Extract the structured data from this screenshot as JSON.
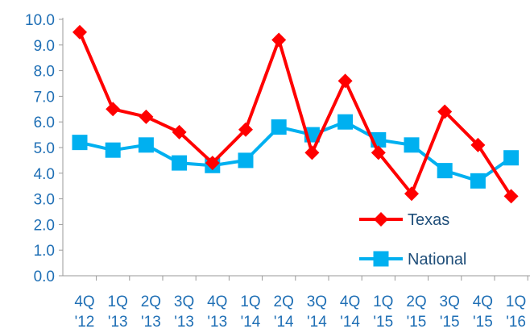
{
  "chart_data": {
    "type": "line",
    "title": "",
    "xlabel": "",
    "ylabel": "",
    "ylim": [
      0,
      10
    ],
    "y_ticks": [
      "0.0",
      "1.0",
      "2.0",
      "3.0",
      "4.0",
      "5.0",
      "6.0",
      "7.0",
      "8.0",
      "9.0",
      "10.0"
    ],
    "categories": [
      {
        "q": "4Q",
        "y": "'12"
      },
      {
        "q": "1Q",
        "y": "'13"
      },
      {
        "q": "2Q",
        "y": "'13"
      },
      {
        "q": "3Q",
        "y": "'13"
      },
      {
        "q": "4Q",
        "y": "'13"
      },
      {
        "q": "1Q",
        "y": "'14"
      },
      {
        "q": "2Q",
        "y": "'14"
      },
      {
        "q": "3Q",
        "y": "'14"
      },
      {
        "q": "4Q",
        "y": "'14"
      },
      {
        "q": "1Q",
        "y": "'15"
      },
      {
        "q": "2Q",
        "y": "'15"
      },
      {
        "q": "3Q",
        "y": "'15"
      },
      {
        "q": "4Q",
        "y": "'15"
      },
      {
        "q": "1Q",
        "y": "'16"
      }
    ],
    "series": [
      {
        "name": "Texas",
        "marker": "diamond",
        "color": "#ff0000",
        "values": [
          9.5,
          6.5,
          6.2,
          5.6,
          4.4,
          5.7,
          9.2,
          4.8,
          7.6,
          4.8,
          3.2,
          6.4,
          5.1,
          3.1
        ]
      },
      {
        "name": "National",
        "marker": "square",
        "color": "#00b0f0",
        "values": [
          5.2,
          4.9,
          5.1,
          4.4,
          4.3,
          4.5,
          5.8,
          5.5,
          6.0,
          5.3,
          5.1,
          4.1,
          3.7,
          4.6
        ]
      }
    ],
    "grid": false,
    "legend": "bottom-right"
  }
}
